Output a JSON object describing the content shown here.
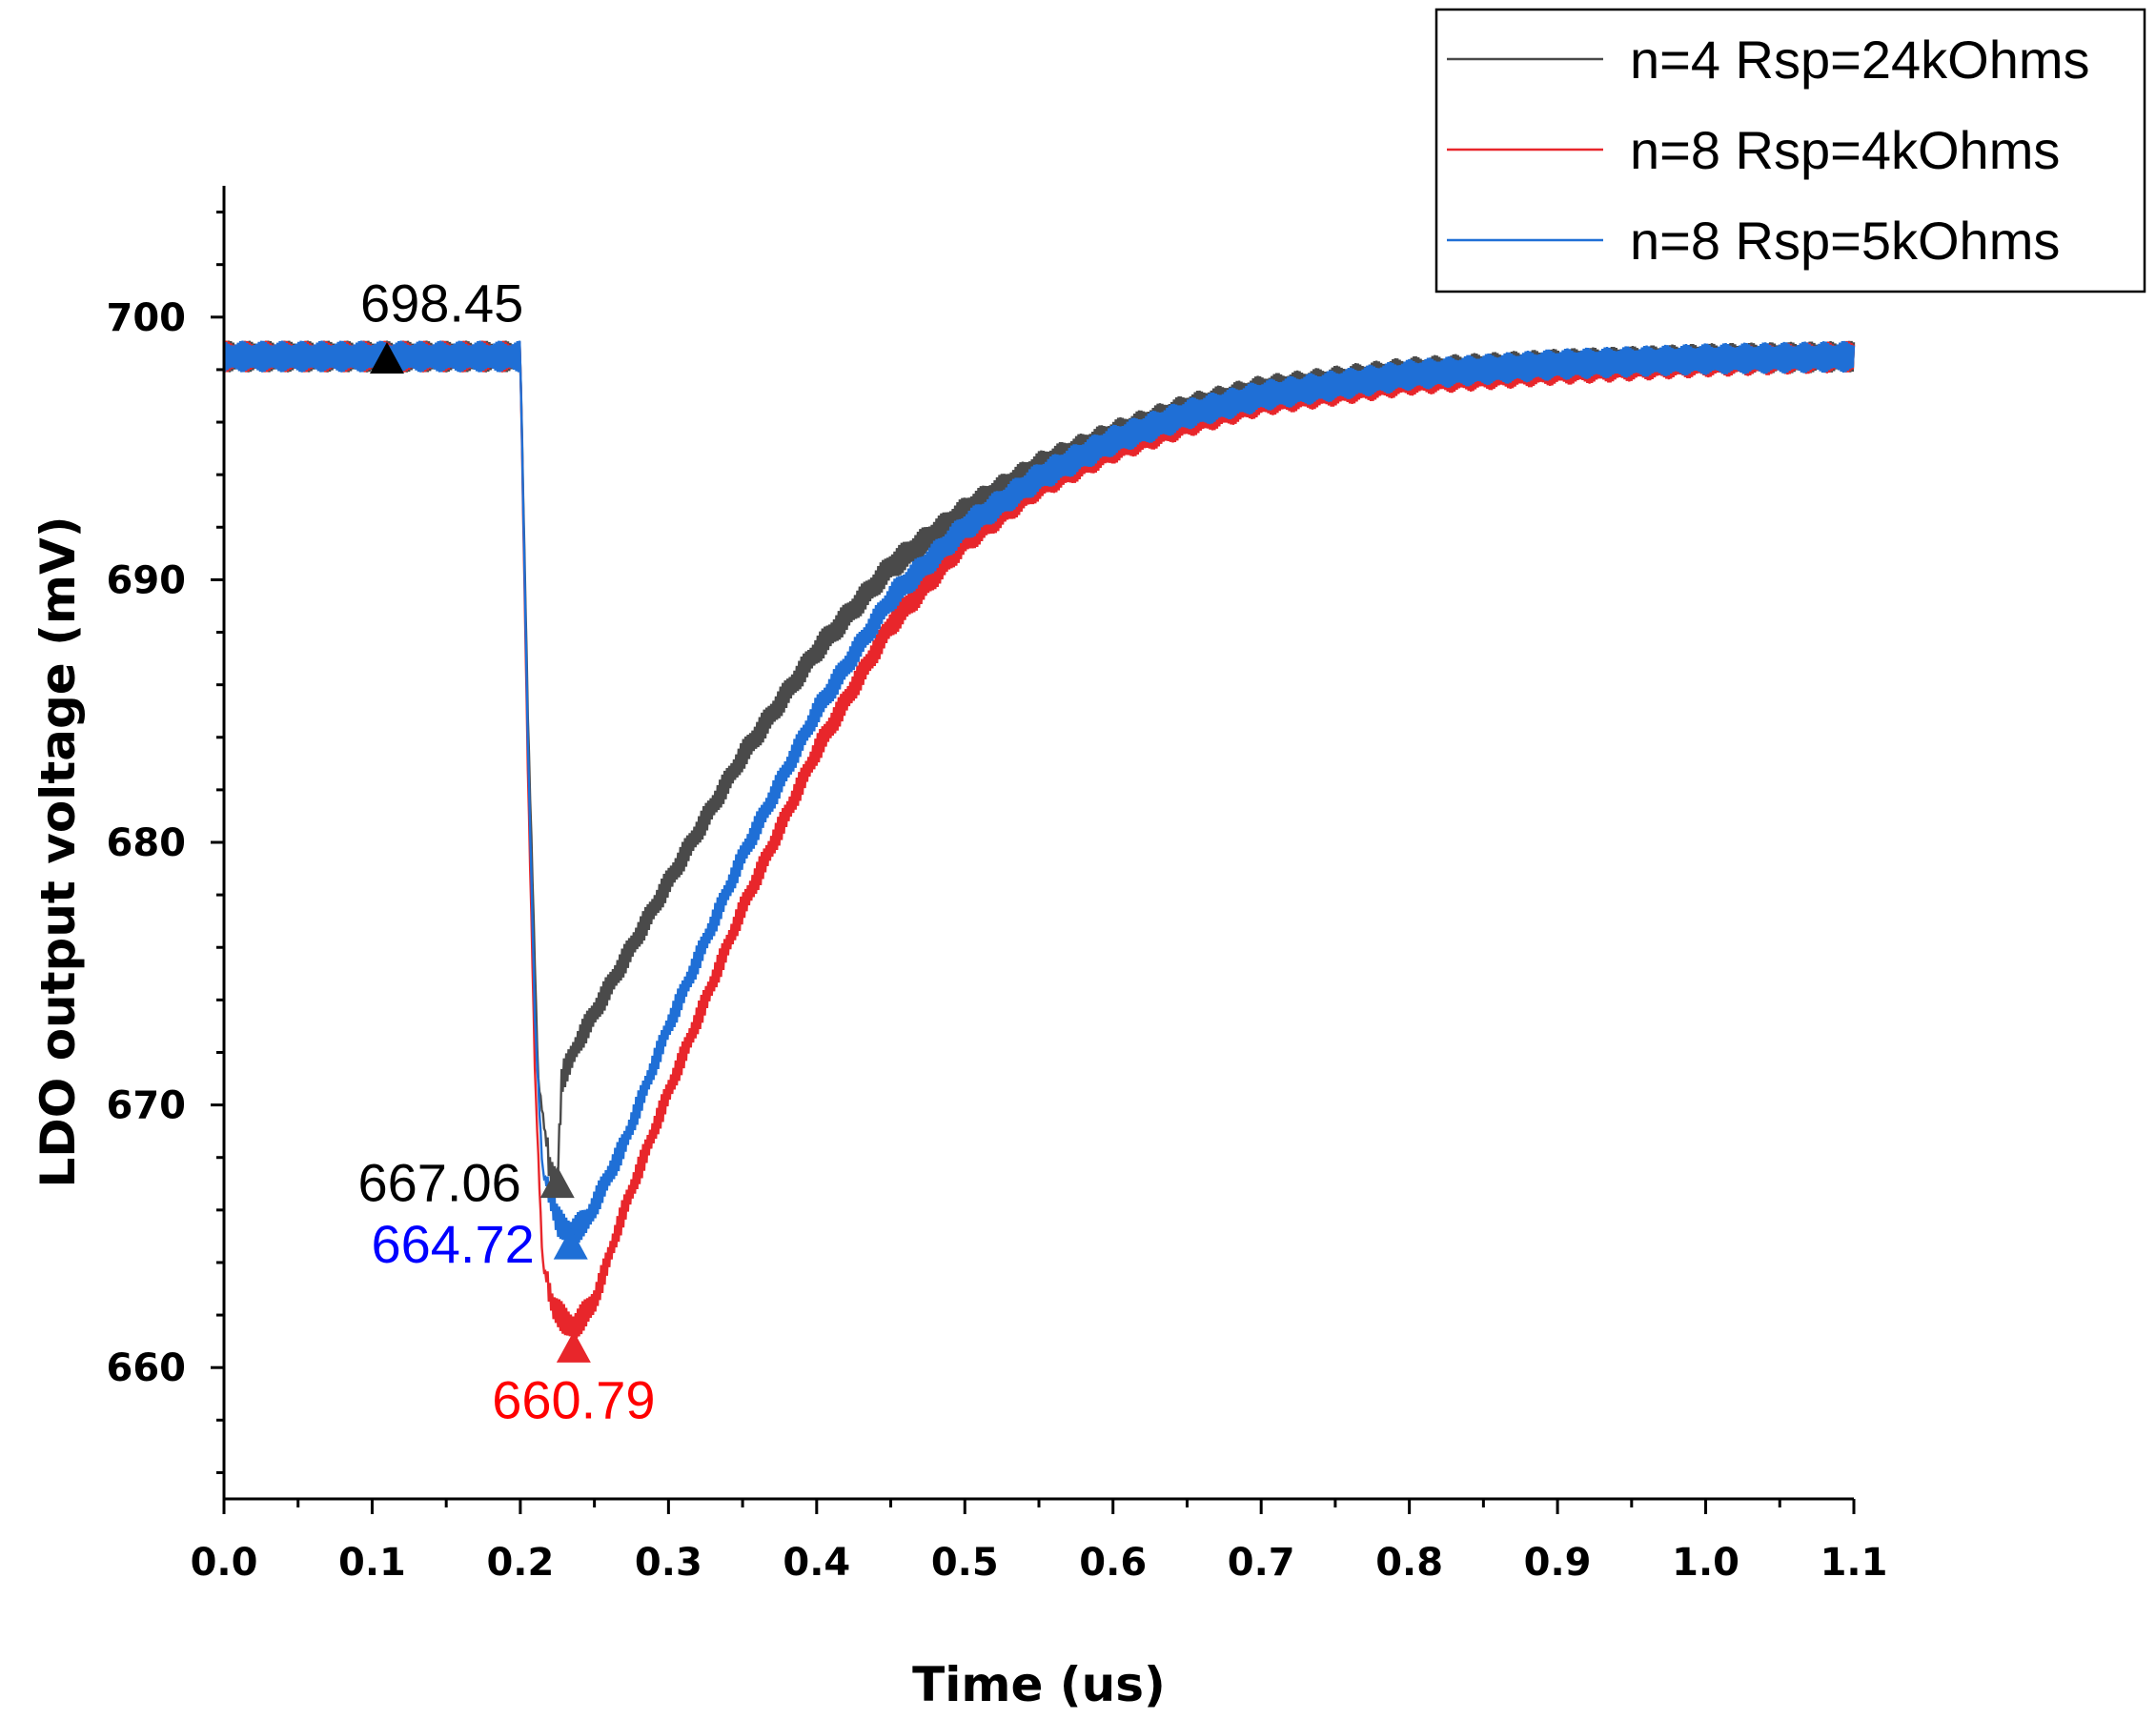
{
  "chart_data": {
    "type": "line",
    "title": "",
    "xlabel": "Time (us)",
    "ylabel": "LDO output voltage (mV)",
    "xlim": [
      0.0,
      1.1
    ],
    "ylim": [
      655,
      705
    ],
    "xticks": [
      "0.0",
      "0.1",
      "0.2",
      "0.3",
      "0.4",
      "0.5",
      "0.6",
      "0.7",
      "0.8",
      "0.9",
      "1.0",
      "1.1"
    ],
    "yticks": [
      "660",
      "670",
      "680",
      "690",
      "700"
    ],
    "ripple_amplitude_mV": 0.6,
    "step_time_us": 0.2,
    "series": [
      {
        "name": "n=4 Rsp=24kOhms",
        "color": "#4a4a4a",
        "points": [
          [
            0.0,
            698.5
          ],
          [
            0.2,
            698.5
          ],
          [
            0.205,
            685
          ],
          [
            0.212,
            671
          ],
          [
            0.22,
            667.5
          ],
          [
            0.225,
            667.1
          ],
          [
            0.228,
            671
          ],
          [
            0.24,
            672.5
          ],
          [
            0.27,
            675.5
          ],
          [
            0.3,
            678.5
          ],
          [
            0.35,
            683.3
          ],
          [
            0.4,
            687.3
          ],
          [
            0.45,
            690.5
          ],
          [
            0.5,
            692.6
          ],
          [
            0.55,
            694.3
          ],
          [
            0.6,
            695.5
          ],
          [
            0.65,
            696.5
          ],
          [
            0.7,
            697.2
          ],
          [
            0.8,
            697.9
          ],
          [
            0.9,
            698.2
          ],
          [
            1.0,
            698.4
          ],
          [
            1.1,
            698.5
          ]
        ]
      },
      {
        "name": "n=8 Rsp=4kOhms",
        "color": "#e8262b",
        "points": [
          [
            0.0,
            698.5
          ],
          [
            0.2,
            698.5
          ],
          [
            0.205,
            683
          ],
          [
            0.21,
            671
          ],
          [
            0.215,
            664
          ],
          [
            0.222,
            662.3
          ],
          [
            0.23,
            661.8
          ],
          [
            0.236,
            661.5
          ],
          [
            0.25,
            662.5
          ],
          [
            0.27,
            666
          ],
          [
            0.3,
            670.5
          ],
          [
            0.35,
            677.5
          ],
          [
            0.4,
            683.5
          ],
          [
            0.45,
            688.3
          ],
          [
            0.5,
            691.5
          ],
          [
            0.55,
            693.6
          ],
          [
            0.6,
            695
          ],
          [
            0.65,
            696
          ],
          [
            0.7,
            696.8
          ],
          [
            0.8,
            697.6
          ],
          [
            0.9,
            698
          ],
          [
            1.0,
            698.3
          ],
          [
            1.1,
            698.5
          ]
        ]
      },
      {
        "name": "n=8 Rsp=5kOhms",
        "color": "#1f6fd6",
        "points": [
          [
            0.0,
            698.5
          ],
          [
            0.2,
            698.5
          ],
          [
            0.205,
            684
          ],
          [
            0.21,
            673
          ],
          [
            0.215,
            667.5
          ],
          [
            0.225,
            665.6
          ],
          [
            0.234,
            665.1
          ],
          [
            0.245,
            665.6
          ],
          [
            0.27,
            668.5
          ],
          [
            0.3,
            673
          ],
          [
            0.35,
            679.5
          ],
          [
            0.4,
            685
          ],
          [
            0.45,
            689.3
          ],
          [
            0.5,
            692
          ],
          [
            0.55,
            693.9
          ],
          [
            0.6,
            695.3
          ],
          [
            0.65,
            696.3
          ],
          [
            0.7,
            697
          ],
          [
            0.8,
            697.8
          ],
          [
            0.9,
            698.2
          ],
          [
            1.0,
            698.4
          ],
          [
            1.1,
            698.5
          ]
        ]
      }
    ],
    "annotations": [
      {
        "text": "698.45",
        "x": 0.11,
        "y": 698.45,
        "color": "#000000",
        "placement": "above"
      },
      {
        "text": "667.06",
        "x": 0.225,
        "y": 667.06,
        "color": "#000000",
        "placement": "left"
      },
      {
        "text": "664.72",
        "x": 0.234,
        "y": 664.72,
        "color": "#0000ff",
        "placement": "left"
      },
      {
        "text": "660.79",
        "x": 0.236,
        "y": 660.79,
        "color": "#ff0000",
        "placement": "below"
      }
    ],
    "marker_colors": [
      "#000000",
      "#4a4a4a",
      "#1f6fd6",
      "#e8262b"
    ],
    "legend_position": "top-right"
  }
}
